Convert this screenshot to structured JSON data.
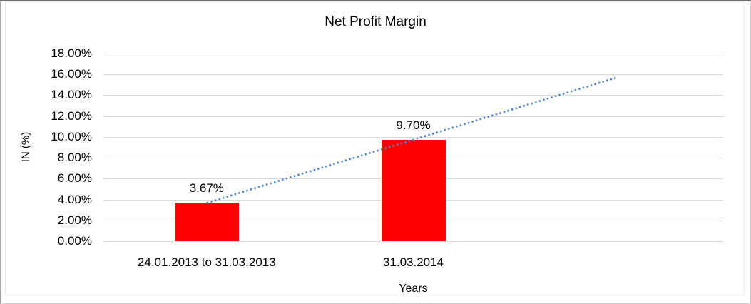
{
  "chart_data": {
    "type": "bar",
    "title": "Net Profit Margin",
    "xlabel": "Years",
    "ylabel": "IN (%)",
    "categories": [
      "24.01.2013 to 31.03.2013",
      "31.03.2014"
    ],
    "values": [
      3.67,
      9.7
    ],
    "data_labels": [
      "3.67%",
      "9.70%"
    ],
    "ylim": [
      0,
      18
    ],
    "ytick_step": 2,
    "yticks": [
      {
        "value": 18,
        "label": "18.00%"
      },
      {
        "value": 16,
        "label": "16.00%"
      },
      {
        "value": 14,
        "label": "14.00%"
      },
      {
        "value": 12,
        "label": "12.00%"
      },
      {
        "value": 10,
        "label": "10.00%"
      },
      {
        "value": 8,
        "label": "8.00%"
      },
      {
        "value": 6,
        "label": "6.00%"
      },
      {
        "value": 4,
        "label": "4.00%"
      },
      {
        "value": 2,
        "label": "2.00%"
      },
      {
        "value": 0,
        "label": "0.00%"
      }
    ],
    "grid": "horizontal",
    "legend": "none",
    "num_slots": 3,
    "colors": {
      "bar": "#ff0000",
      "gridline": "#d9d9d9",
      "trendline": "#4f86c6",
      "text": "#000000"
    },
    "trendline": {
      "type": "linear",
      "style": "dotted",
      "forecast_periods": 1,
      "start": {
        "slot": 0,
        "value": 3.67
      },
      "end": {
        "slot": 2,
        "value": 15.73
      }
    }
  }
}
